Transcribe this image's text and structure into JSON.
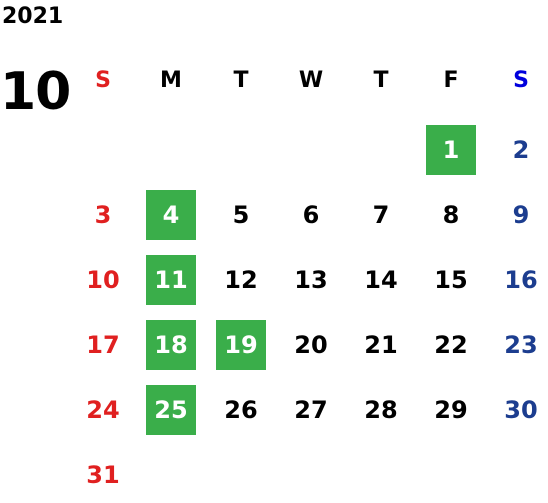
{
  "calendar": {
    "year": "2021",
    "month": "10",
    "weekdays": [
      "S",
      "M",
      "T",
      "W",
      "T",
      "F",
      "S"
    ],
    "colors": {
      "sunday": "#e02020",
      "weekday_header_saturday": "#0000dd",
      "saturday_date": "#1c3d8f",
      "weekday": "#000000",
      "highlight_bg": "#3aae4a",
      "highlight_text": "#ffffff"
    },
    "first_weekday_index": 5,
    "days_in_month": 31,
    "highlighted_days": [
      1,
      4,
      11,
      18,
      19,
      25
    ]
  }
}
